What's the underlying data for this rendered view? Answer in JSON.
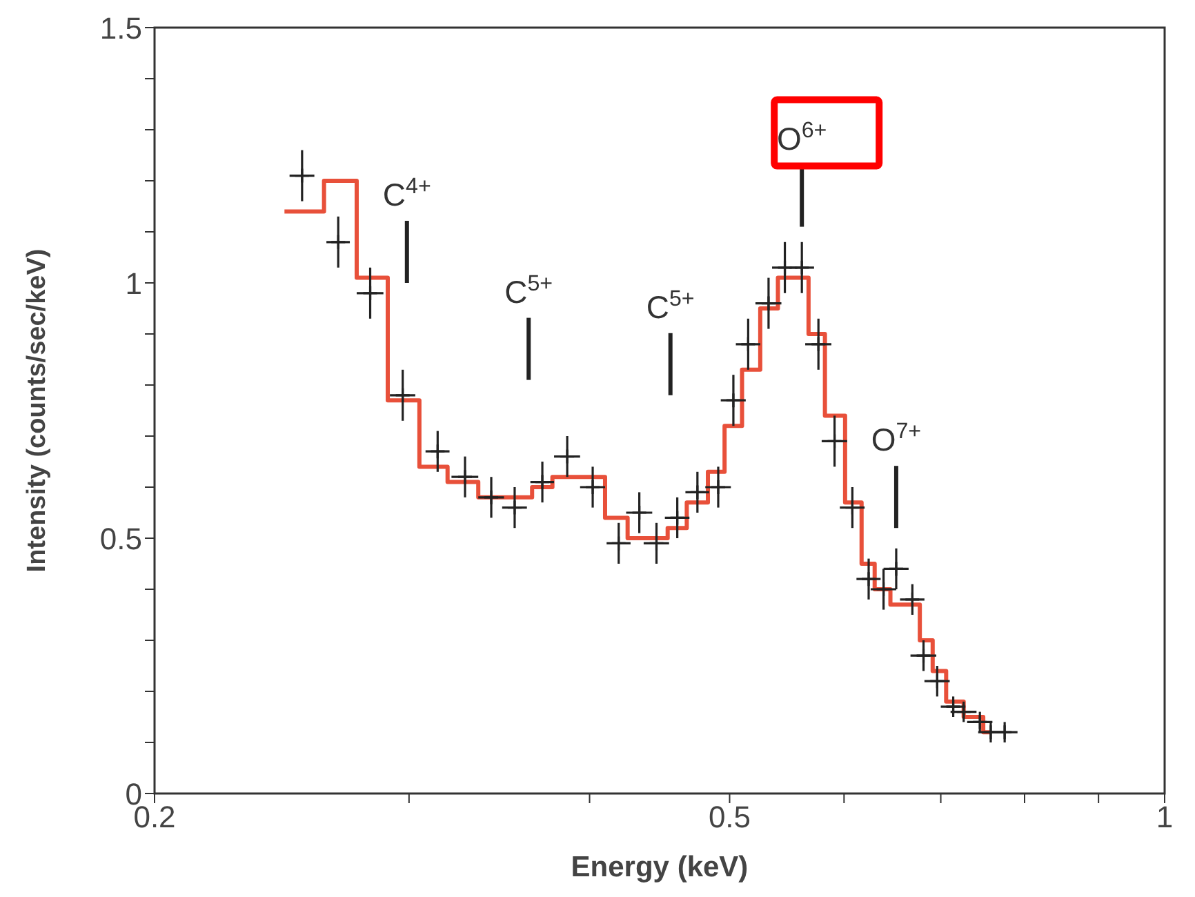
{
  "chart_data": {
    "type": "scatter",
    "xlabel": "Energy (keV)",
    "ylabel": "Intensity (counts/sec/keV)",
    "log": "x",
    "xlim": [
      0.2,
      1
    ],
    "xticks": [
      0.2,
      {
        "value": 0.3,
        "label": null
      },
      {
        "value": 0.4,
        "label": null
      },
      0.5,
      {
        "value": 0.6,
        "label": null
      },
      {
        "value": 0.7,
        "label": null
      },
      {
        "value": 0.8,
        "label": null
      },
      {
        "value": 0.9,
        "label": null
      },
      1
    ],
    "ylim": [
      0,
      1.5
    ],
    "yticks": [
      0,
      {
        "value": 0.1,
        "label": null
      },
      {
        "value": 0.2,
        "label": null
      },
      {
        "value": 0.3,
        "label": null
      },
      {
        "value": 0.4,
        "label": null
      },
      0.5,
      {
        "value": 0.6,
        "label": null
      },
      {
        "value": 0.7,
        "label": null
      },
      {
        "value": 0.8,
        "label": null
      },
      {
        "value": 0.9,
        "label": null
      },
      1,
      {
        "value": 1.1,
        "label": null
      },
      {
        "value": 1.2,
        "label": null
      },
      {
        "value": 1.3,
        "label": null
      },
      {
        "value": 1.4,
        "label": null
      },
      1.5
    ],
    "series": [
      {
        "color": "#222222",
        "marker": "cross",
        "x": [
          0.253,
          0.268,
          0.282,
          0.297,
          0.314,
          0.328,
          0.342,
          0.355,
          0.371,
          0.386,
          0.402,
          0.419,
          0.433,
          0.445,
          0.46,
          0.475,
          0.491,
          0.503,
          0.515,
          0.532,
          0.546,
          0.561,
          0.576,
          0.591,
          0.608,
          0.624,
          0.639,
          0.652,
          0.669,
          0.681,
          0.696,
          0.714,
          0.726,
          0.745,
          0.758,
          0.775
        ],
        "values": [
          1.21,
          1.08,
          0.98,
          0.78,
          0.67,
          0.62,
          0.58,
          0.56,
          0.61,
          0.66,
          0.6,
          0.49,
          0.55,
          0.49,
          0.54,
          0.59,
          0.6,
          0.77,
          0.88,
          0.96,
          1.03,
          1.03,
          0.88,
          0.69,
          0.56,
          0.42,
          0.4,
          0.44,
          0.38,
          0.27,
          0.22,
          0.17,
          0.16,
          0.14,
          0.12,
          0.12
        ],
        "errors": [
          0.05,
          0.05,
          0.05,
          0.05,
          0.04,
          0.04,
          0.04,
          0.04,
          0.04,
          0.04,
          0.04,
          0.04,
          0.04,
          0.04,
          0.04,
          0.04,
          0.04,
          0.05,
          0.05,
          0.05,
          0.05,
          0.05,
          0.05,
          0.05,
          0.04,
          0.04,
          0.04,
          0.04,
          0.03,
          0.03,
          0.03,
          0.02,
          0.02,
          0.02,
          0.02,
          0.02
        ],
        "xerrors": [
          0.005,
          0.005,
          0.006,
          0.006,
          0.006,
          0.007,
          0.007,
          0.007,
          0.007,
          0.008,
          0.008,
          0.008,
          0.009,
          0.009,
          0.009,
          0.009,
          0.01,
          0.01,
          0.01,
          0.011,
          0.011,
          0.011,
          0.012,
          0.012,
          0.012,
          0.012,
          0.013,
          0.013,
          0.013,
          0.014,
          0.014,
          0.014,
          0.015,
          0.015,
          0.015,
          0.016
        ]
      },
      {
        "type": "step",
        "color": "#e8503a",
        "x": [
          0.246,
          0.262,
          0.276,
          0.29,
          0.305,
          0.319,
          0.335,
          0.365,
          0.377,
          0.41,
          0.425,
          0.453,
          0.467,
          0.483,
          0.496,
          0.51,
          0.525,
          0.54,
          0.567,
          0.582,
          0.601,
          0.617,
          0.63,
          0.646,
          0.677,
          0.691,
          0.706,
          0.726,
          0.749,
          0.758
        ],
        "values": [
          1.14,
          1.2,
          1.01,
          0.77,
          0.64,
          0.61,
          0.58,
          0.6,
          0.62,
          0.54,
          0.5,
          0.52,
          0.57,
          0.63,
          0.72,
          0.83,
          0.95,
          1.01,
          0.9,
          0.74,
          0.57,
          0.45,
          0.4,
          0.37,
          0.3,
          0.24,
          0.18,
          0.15,
          0.12,
          0.12
        ]
      }
    ],
    "annotations": [
      "C$^{4+}$",
      "C$^{5+}$",
      "C$^{5+}$",
      "O$^{6+}$",
      "O$^{7+}$"
    ]
  }
}
